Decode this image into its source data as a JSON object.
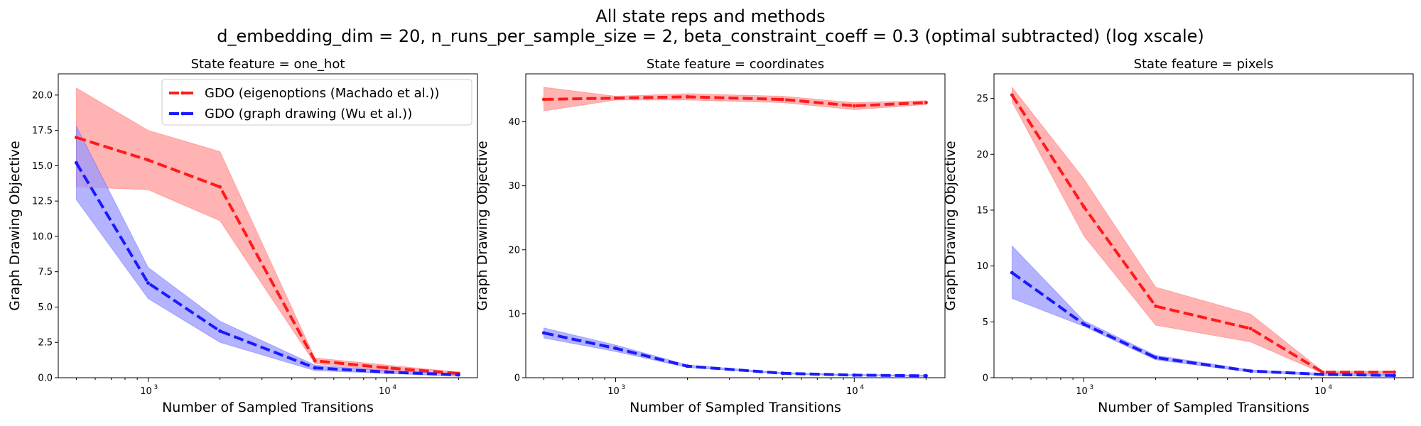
{
  "figure": {
    "title_line1": "All state reps and methods",
    "title_line2": "d_embedding_dim = 20, n_runs_per_sample_size = 2, beta_constraint_coeff = 0.3 (optimal subtracted) (log xscale)"
  },
  "colors": {
    "red": "#ff1a1a",
    "blue": "#1a1aff",
    "red_fill": "#ff9999",
    "blue_fill": "#9999ff"
  },
  "chart_data": [
    {
      "type": "line",
      "title": "State feature = one_hot",
      "xlabel": "Number of Sampled Transitions",
      "ylabel": "Graph Drawing Objective",
      "xscale": "log",
      "xlim": [
        420,
        24000
      ],
      "ylim": [
        0,
        21.5
      ],
      "yticks": [
        0,
        2.5,
        5,
        7.5,
        10,
        12.5,
        15,
        17.5,
        20
      ],
      "ytick_labels": [
        "0.0",
        "2.5",
        "5.0",
        "7.5",
        "10.0",
        "12.5",
        "15.0",
        "17.5",
        "20.0"
      ],
      "xticks": [
        1000,
        10000
      ],
      "xtick_labels": [
        {
          "base": "10",
          "exp": "3"
        },
        {
          "base": "10",
          "exp": "4"
        }
      ],
      "legend": "top-right",
      "x": [
        500,
        1000,
        2000,
        5000,
        10000,
        20000
      ],
      "series": [
        {
          "name": "GDO (eigenoptions (Machado et al.))",
          "color": "red",
          "values": [
            17.0,
            15.4,
            13.5,
            1.2,
            0.7,
            0.3
          ],
          "lower": [
            13.5,
            13.3,
            11.1,
            1.0,
            0.5,
            0.2
          ],
          "upper": [
            20.5,
            17.5,
            16.0,
            1.4,
            0.9,
            0.4
          ]
        },
        {
          "name": "GDO (graph drawing (Wu et al.))",
          "color": "blue",
          "values": [
            15.2,
            6.7,
            3.3,
            0.7,
            0.4,
            0.2
          ],
          "lower": [
            12.6,
            5.6,
            2.5,
            0.5,
            0.3,
            0.1
          ],
          "upper": [
            17.8,
            7.8,
            4.0,
            0.9,
            0.5,
            0.3
          ]
        }
      ]
    },
    {
      "type": "line",
      "title": "State feature = coordinates",
      "xlabel": "Number of Sampled Transitions",
      "ylabel": "Graph Drawing Objective",
      "xscale": "log",
      "xlim": [
        420,
        24000
      ],
      "ylim": [
        0,
        47.5
      ],
      "yticks": [
        0,
        10,
        20,
        30,
        40
      ],
      "ytick_labels": [
        "0",
        "10",
        "20",
        "30",
        "40"
      ],
      "xticks": [
        1000,
        10000
      ],
      "xtick_labels": [
        {
          "base": "10",
          "exp": "3"
        },
        {
          "base": "10",
          "exp": "4"
        }
      ],
      "legend": "none",
      "x": [
        500,
        1000,
        2000,
        5000,
        10000,
        20000
      ],
      "series": [
        {
          "name": "GDO (eigenoptions (Machado et al.))",
          "color": "red",
          "values": [
            43.5,
            43.7,
            43.9,
            43.5,
            42.5,
            43.0
          ],
          "lower": [
            41.7,
            43.4,
            43.4,
            43.0,
            41.9,
            42.7
          ],
          "upper": [
            45.4,
            44.0,
            44.4,
            44.0,
            43.0,
            43.3
          ]
        },
        {
          "name": "GDO (graph drawing (Wu et al.))",
          "color": "blue",
          "values": [
            7.0,
            4.6,
            1.8,
            0.7,
            0.4,
            0.3
          ],
          "lower": [
            6.2,
            4.1,
            1.6,
            0.6,
            0.3,
            0.2
          ],
          "upper": [
            7.8,
            5.1,
            2.0,
            0.8,
            0.5,
            0.4
          ]
        }
      ]
    },
    {
      "type": "line",
      "title": "State feature = pixels",
      "xlabel": "Number of Sampled Transitions",
      "ylabel": "Graph Drawing Objective",
      "xscale": "log",
      "xlim": [
        420,
        24000
      ],
      "ylim": [
        0,
        27.2
      ],
      "yticks": [
        0,
        5,
        10,
        15,
        20,
        25
      ],
      "ytick_labels": [
        "0",
        "5",
        "10",
        "15",
        "20",
        "25"
      ],
      "xticks": [
        1000,
        10000
      ],
      "xtick_labels": [
        {
          "base": "10",
          "exp": "3"
        },
        {
          "base": "10",
          "exp": "4"
        }
      ],
      "legend": "none",
      "x": [
        500,
        1000,
        2000,
        5000,
        10000,
        20000
      ],
      "series": [
        {
          "name": "GDO (eigenoptions (Machado et al.))",
          "color": "red",
          "values": [
            25.3,
            15.3,
            6.4,
            4.4,
            0.5,
            0.5
          ],
          "lower": [
            24.7,
            12.7,
            4.7,
            3.2,
            0.4,
            0.4
          ],
          "upper": [
            26.0,
            17.8,
            8.1,
            5.7,
            0.6,
            0.6
          ]
        },
        {
          "name": "GDO (graph drawing (Wu et al.))",
          "color": "blue",
          "values": [
            9.4,
            4.8,
            1.8,
            0.6,
            0.3,
            0.2
          ],
          "lower": [
            7.1,
            4.6,
            1.6,
            0.5,
            0.2,
            0.1
          ],
          "upper": [
            11.8,
            5.1,
            2.0,
            0.7,
            0.4,
            0.3
          ]
        }
      ]
    }
  ]
}
